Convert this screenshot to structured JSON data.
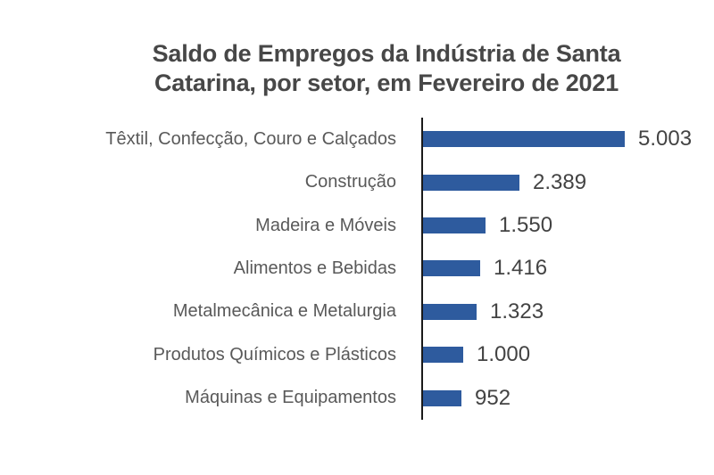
{
  "chart_data": {
    "type": "bar",
    "orientation": "horizontal",
    "title": "Saldo de Empregos da Indústria de Santa Catarina, por setor, em Fevereiro de 2021",
    "title_lines": [
      "Saldo de Empregos da Indústria de Santa",
      "Catarina, por setor, em Fevereiro de 2021"
    ],
    "categories": [
      "Têxtil, Confecção, Couro e Calçados",
      "Construção",
      "Madeira e Móveis",
      "Alimentos e Bebidas",
      "Metalmecânica e Metalurgia",
      "Produtos Químicos e Plásticos",
      "Máquinas e Equipamentos"
    ],
    "values": [
      5003,
      2389,
      1550,
      1416,
      1323,
      1000,
      952
    ],
    "value_labels": [
      "5.003",
      "2.389",
      "1.550",
      "1.416",
      "1.323",
      "1.000",
      "952"
    ],
    "xlabel": "",
    "ylabel": "",
    "xlim": [
      0,
      5003
    ],
    "grid": false,
    "legend": false,
    "colors": {
      "bar": "#2E5B9E",
      "axis": "#1A1A1A",
      "title_text": "#474747",
      "category_text": "#595959",
      "value_text": "#434343"
    }
  }
}
